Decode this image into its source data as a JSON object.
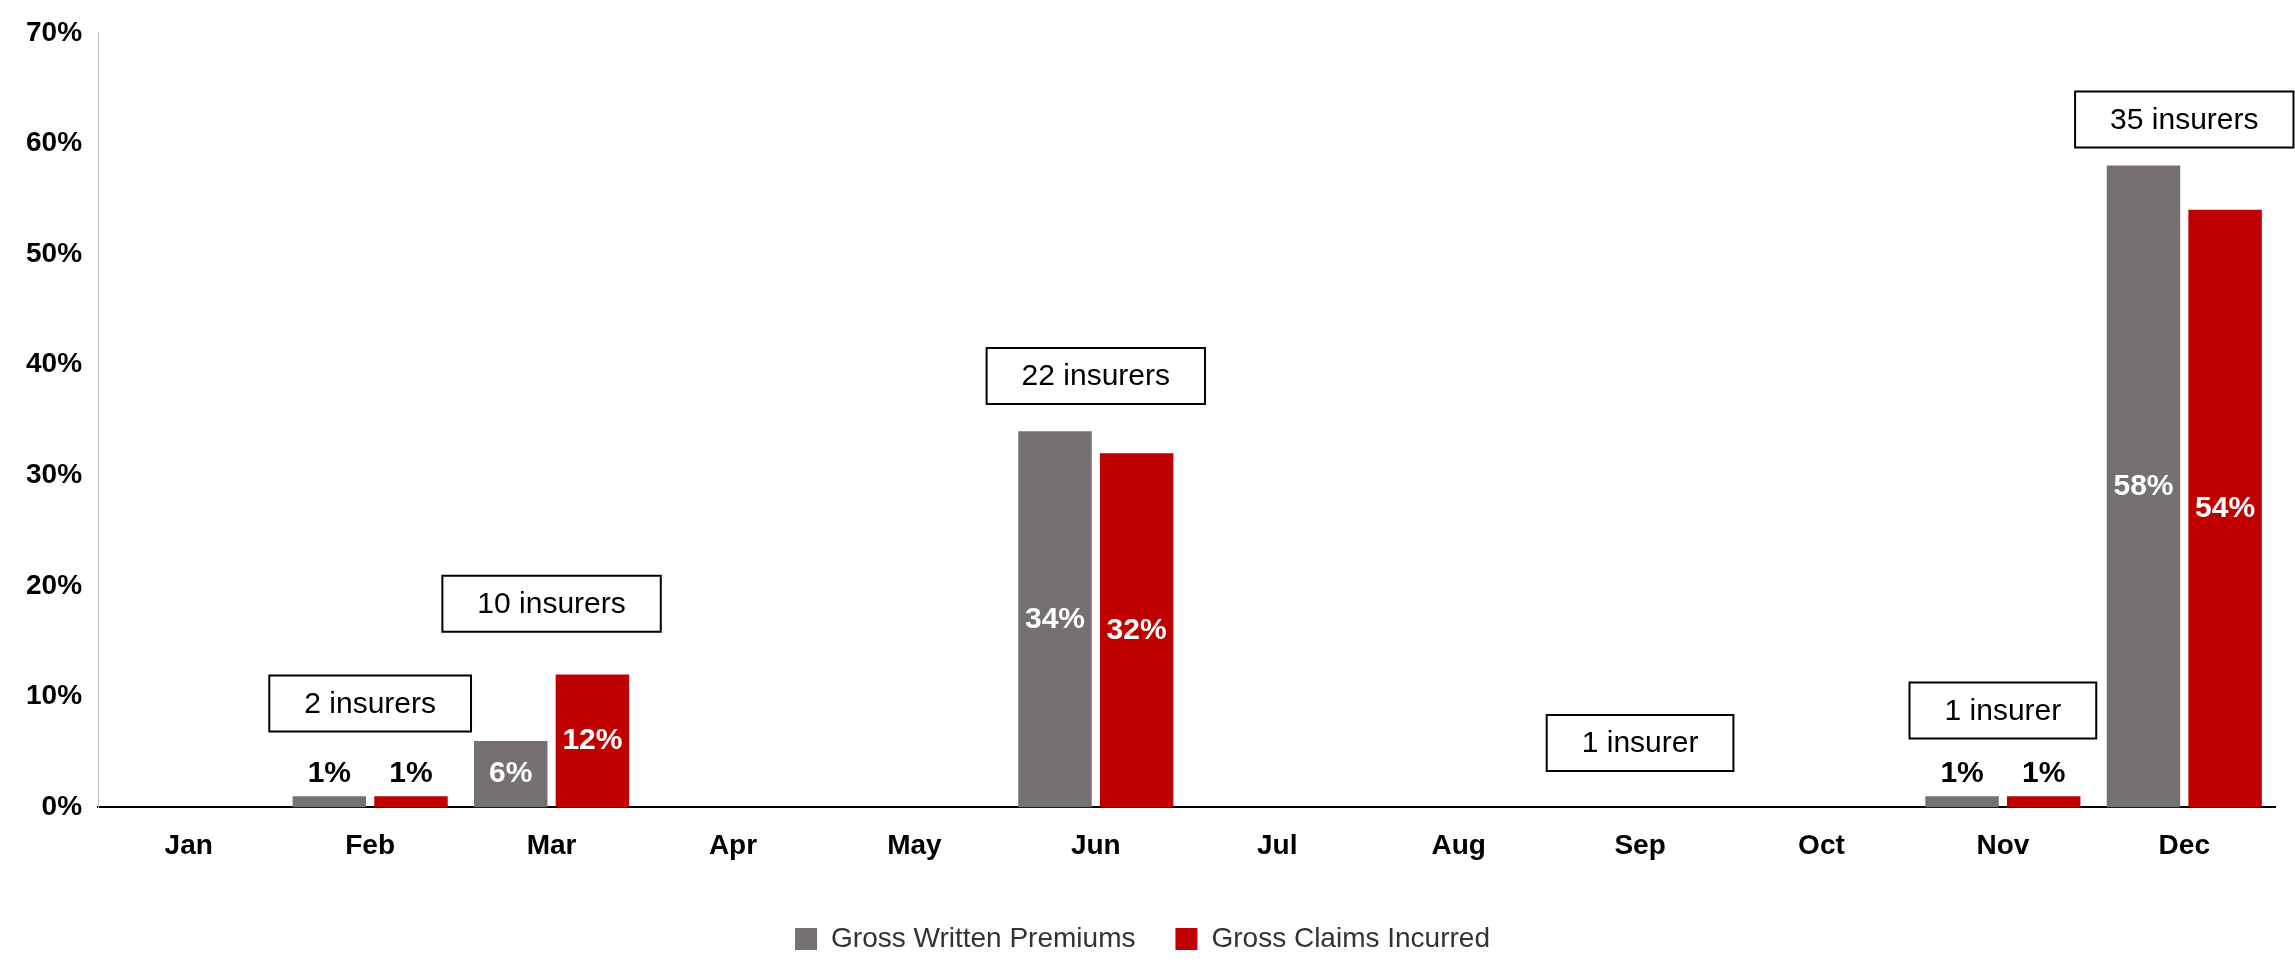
{
  "chart_data": {
    "type": "bar",
    "categories": [
      "Jan",
      "Feb",
      "Mar",
      "Apr",
      "May",
      "Jun",
      "Jul",
      "Aug",
      "Sep",
      "Oct",
      "Nov",
      "Dec"
    ],
    "series": [
      {
        "name": "Gross Written Premiums",
        "color": "#767171",
        "values": [
          null,
          1,
          6,
          null,
          null,
          34,
          null,
          null,
          null,
          null,
          1,
          58
        ],
        "value_labels": [
          null,
          "1%",
          "6%",
          null,
          null,
          "34%",
          null,
          null,
          null,
          null,
          "1%",
          "58%"
        ]
      },
      {
        "name": "Gross Claims Incurred",
        "color": "#c00000",
        "values": [
          null,
          1,
          12,
          null,
          null,
          32,
          null,
          null,
          null,
          null,
          1,
          54
        ],
        "value_labels": [
          null,
          "1%",
          "12%",
          null,
          null,
          "32%",
          null,
          null,
          null,
          null,
          "1%",
          "54%"
        ]
      }
    ],
    "ylim": [
      0,
      70
    ],
    "yticks": [
      {
        "value": 0,
        "label": "0%"
      },
      {
        "value": 10,
        "label": "10%"
      },
      {
        "value": 20,
        "label": "20%"
      },
      {
        "value": 30,
        "label": "30%"
      },
      {
        "value": 40,
        "label": "40%"
      },
      {
        "value": 50,
        "label": "50%"
      },
      {
        "value": 60,
        "label": "60%"
      },
      {
        "value": 70,
        "label": "70%"
      }
    ],
    "annotations": [
      "2 insurers",
      "10 insurers",
      "22 insurers",
      "1 insurer",
      "1 insurer",
      "35 insurers"
    ],
    "grid": false,
    "legend": "bottom"
  }
}
